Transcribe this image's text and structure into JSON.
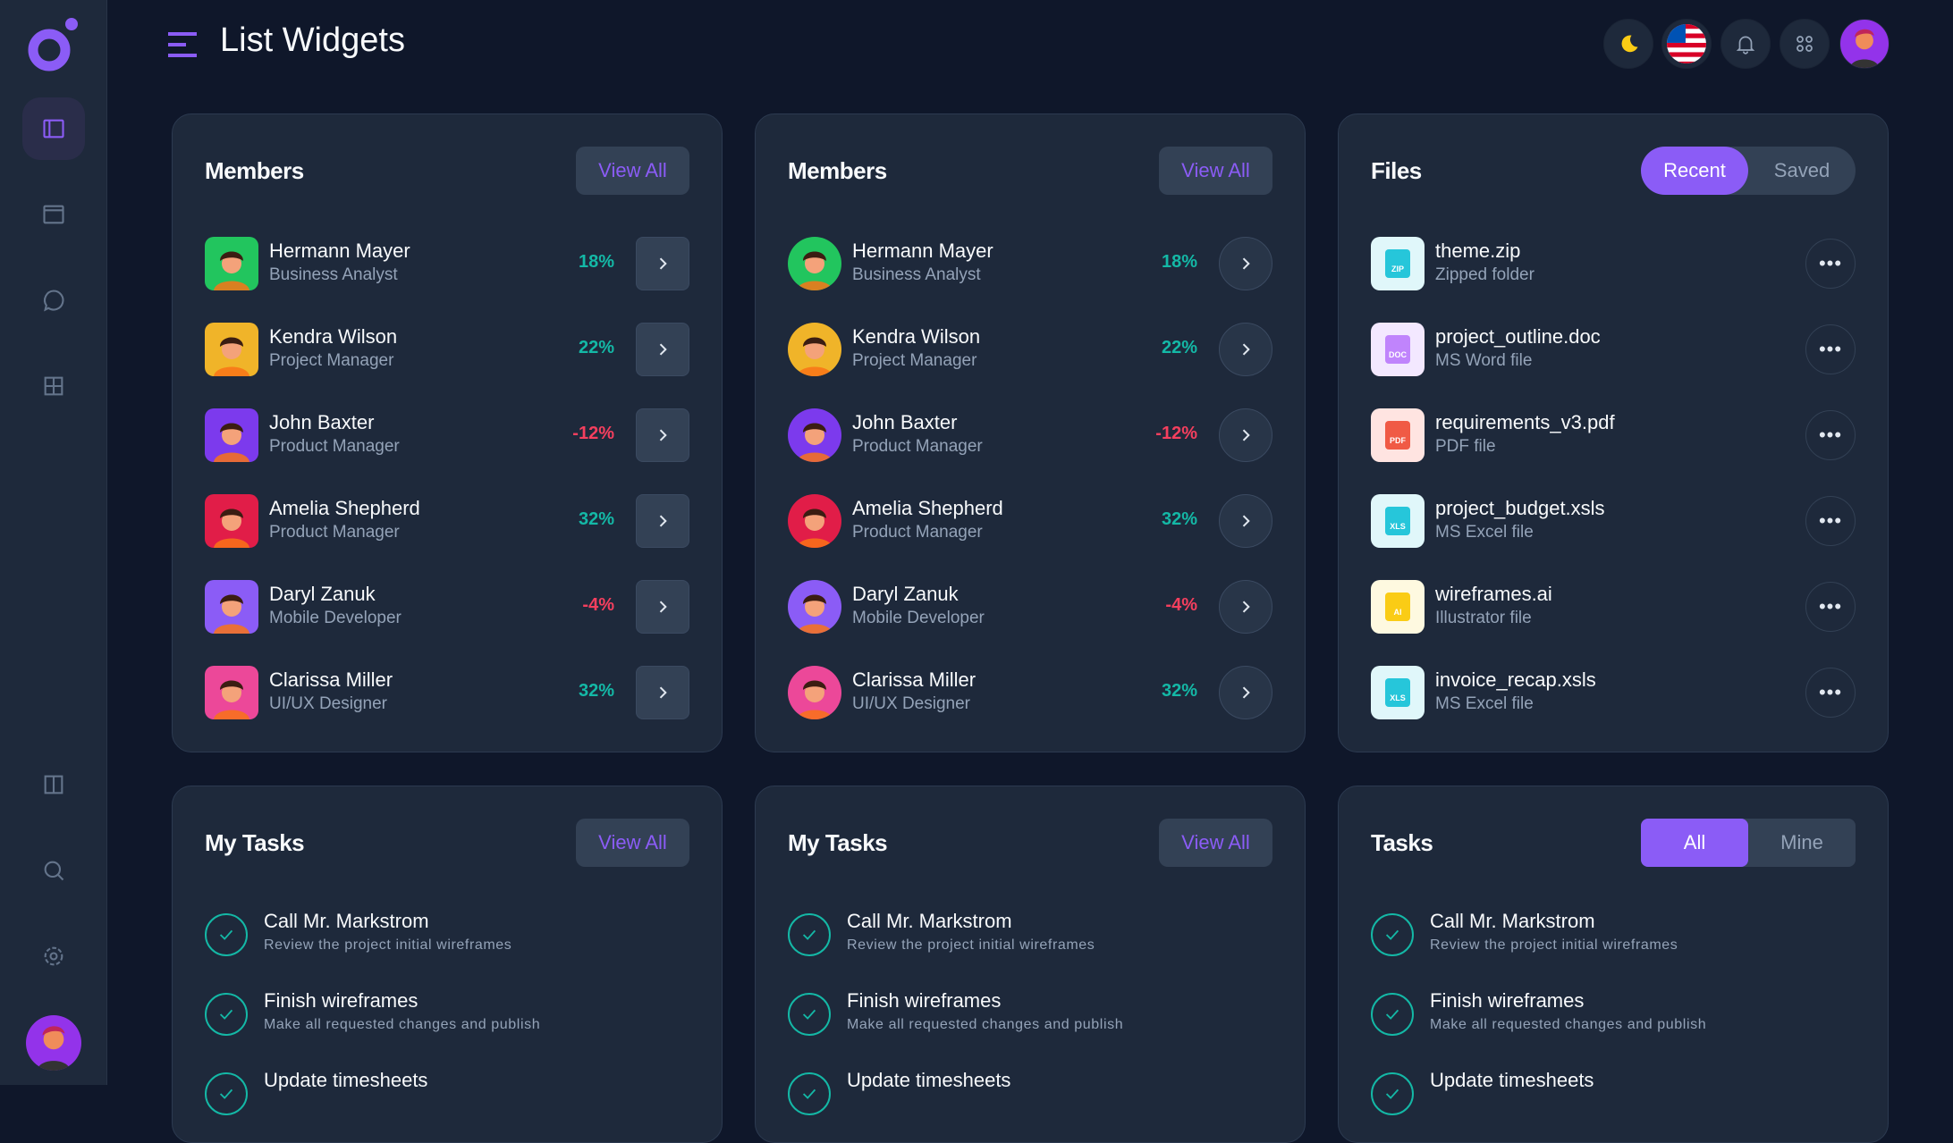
{
  "header": {
    "title": "List Widgets"
  },
  "sidebar": {
    "items": [
      "dashboard",
      "window",
      "messages",
      "grid",
      "columns",
      "search",
      "settings"
    ]
  },
  "topbar": {
    "icons": [
      "moon-icon",
      "us-flag-icon",
      "bell-icon",
      "apps-icon",
      "user-avatar"
    ]
  },
  "colors": {
    "accent": "#8b5cf6",
    "positive": "#14b8a6",
    "negative": "#f43f5e",
    "card": "#1e293b",
    "background": "#0f172a"
  },
  "members_cards": [
    {
      "title": "Members",
      "view_all": "View All",
      "style": "square"
    },
    {
      "title": "Members",
      "view_all": "View All",
      "style": "circle"
    }
  ],
  "members": [
    {
      "name": "Hermann Mayer",
      "role": "Business Analyst",
      "change": "18%",
      "trend": "up",
      "color": "#22c55e"
    },
    {
      "name": "Kendra Wilson",
      "role": "Project Manager",
      "change": "22%",
      "trend": "up",
      "color": "#f0b429"
    },
    {
      "name": "John Baxter",
      "role": "Product Manager",
      "change": "-12%",
      "trend": "down",
      "color": "#7c3aed"
    },
    {
      "name": "Amelia Shepherd",
      "role": "Product Manager",
      "change": "32%",
      "trend": "up",
      "color": "#e11d48"
    },
    {
      "name": "Daryl Zanuk",
      "role": "Mobile Developer",
      "change": "-4%",
      "trend": "down",
      "color": "#8b5cf6"
    },
    {
      "name": "Clarissa Miller",
      "role": "UI/UX Designer",
      "change": "32%",
      "trend": "up",
      "color": "#ec4899"
    }
  ],
  "files": {
    "title": "Files",
    "tabs": [
      {
        "label": "Recent",
        "active": true
      },
      {
        "label": "Saved",
        "active": false
      }
    ],
    "items": [
      {
        "name": "theme.zip",
        "type": "Zipped folder",
        "badge": "ZIP",
        "bg": "#e0f7fa",
        "fg": "#26c6da"
      },
      {
        "name": "project_outline.doc",
        "type": "MS Word file",
        "badge": "DOC",
        "bg": "#f3e8ff",
        "fg": "#c084fc"
      },
      {
        "name": "requirements_v3.pdf",
        "type": "PDF file",
        "badge": "PDF",
        "bg": "#ffe4e1",
        "fg": "#f05a45"
      },
      {
        "name": "project_budget.xsls",
        "type": "MS Excel file",
        "badge": "XLS",
        "bg": "#e0f7fa",
        "fg": "#26c6da"
      },
      {
        "name": "wireframes.ai",
        "type": "Illustrator file",
        "badge": "AI",
        "bg": "#fef9e0",
        "fg": "#facc15"
      },
      {
        "name": "invoice_recap.xsls",
        "type": "MS Excel file",
        "badge": "XLS",
        "bg": "#e0f7fa",
        "fg": "#26c6da"
      }
    ]
  },
  "task_cards": [
    {
      "title": "My Tasks",
      "view_all": "View All"
    },
    {
      "title": "My Tasks",
      "view_all": "View All"
    },
    {
      "title": "Tasks",
      "tabs": [
        {
          "label": "All",
          "active": true
        },
        {
          "label": "Mine",
          "active": false
        }
      ]
    }
  ],
  "tasks": [
    {
      "title": "Call Mr. Markstrom",
      "desc": "Review the project initial wireframes"
    },
    {
      "title": "Finish wireframes",
      "desc": "Make all requested changes and publish"
    },
    {
      "title": "Update timesheets",
      "desc": ""
    }
  ]
}
